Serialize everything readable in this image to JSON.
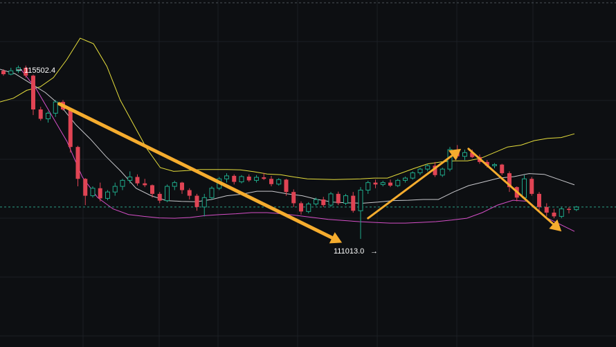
{
  "chart_data": {
    "type": "candlestick",
    "annotations": {
      "high_label": "115502.4",
      "low_label": "111013.0",
      "low_arrow_glyph": "→"
    },
    "colors": {
      "background": "#0d0f12",
      "up": "#1fa98a",
      "down": "#e04454",
      "upper_band": "#e6de3c",
      "middle_band": "#c8c8cc",
      "lower_band": "#d64fc8",
      "trend_arrow": "#f5ac2e",
      "current_price_line": "#33c3a5",
      "grid": "#1c1f24"
    },
    "candles": [
      [
        115480,
        115520,
        115350,
        115390
      ],
      [
        115390,
        115560,
        115360,
        115480
      ],
      [
        115480,
        115620,
        115420,
        115560
      ],
      [
        115560,
        115620,
        115300,
        115350
      ],
      [
        115350,
        115380,
        114300,
        114450
      ],
      [
        114450,
        114520,
        114150,
        114200
      ],
      [
        114200,
        114400,
        114100,
        114350
      ],
      [
        114350,
        114700,
        114250,
        114650
      ],
      [
        114650,
        114700,
        114420,
        114450
      ],
      [
        114450,
        114500,
        113300,
        113450
      ],
      [
        113450,
        113480,
        112400,
        112600
      ],
      [
        112600,
        112620,
        111900,
        112150
      ],
      [
        112150,
        112400,
        112100,
        112350
      ],
      [
        112350,
        112500,
        112000,
        112080
      ],
      [
        112080,
        112300,
        112030,
        112250
      ],
      [
        112250,
        112500,
        112150,
        112400
      ],
      [
        112400,
        112600,
        112300,
        112560
      ],
      [
        112560,
        112800,
        112480,
        112650
      ],
      [
        112650,
        112720,
        112420,
        112480
      ],
      [
        112480,
        112600,
        112380,
        112430
      ],
      [
        112430,
        112450,
        112100,
        112200
      ],
      [
        112200,
        112250,
        111950,
        112020
      ],
      [
        112020,
        112450,
        111980,
        112400
      ],
      [
        112400,
        112550,
        112300,
        112500
      ],
      [
        112500,
        112520,
        112200,
        112300
      ],
      [
        112300,
        112350,
        112050,
        112150
      ],
      [
        112150,
        112200,
        111750,
        111850
      ],
      [
        111850,
        112200,
        111600,
        112100
      ],
      [
        112100,
        112400,
        112050,
        112350
      ],
      [
        112350,
        112650,
        112300,
        112600
      ],
      [
        112600,
        112750,
        112500,
        112680
      ],
      [
        112680,
        112720,
        112450,
        112520
      ],
      [
        112520,
        112700,
        112480,
        112660
      ],
      [
        112660,
        112720,
        112520,
        112560
      ],
      [
        112560,
        112700,
        112500,
        112640
      ],
      [
        112640,
        112760,
        112570,
        112600
      ],
      [
        112600,
        112680,
        112400,
        112460
      ],
      [
        112460,
        112620,
        112420,
        112580
      ],
      [
        112580,
        112600,
        112150,
        112250
      ],
      [
        112250,
        112320,
        111850,
        111950
      ],
      [
        111950,
        112000,
        111650,
        111730
      ],
      [
        111730,
        111980,
        111680,
        111930
      ],
      [
        111930,
        112100,
        111880,
        112050
      ],
      [
        112050,
        112120,
        111850,
        111900
      ],
      [
        111900,
        112250,
        111850,
        112200
      ],
      [
        112200,
        112260,
        111900,
        111950
      ],
      [
        111950,
        112200,
        111900,
        112150
      ],
      [
        112150,
        112250,
        111700,
        111750
      ],
      [
        111750,
        112380,
        111000,
        112300
      ],
      [
        112300,
        112550,
        112200,
        112500
      ],
      [
        112500,
        112580,
        112350,
        112450
      ],
      [
        112450,
        112550,
        112400,
        112500
      ],
      [
        112500,
        112580,
        112380,
        112420
      ],
      [
        112420,
        112600,
        112380,
        112560
      ],
      [
        112560,
        112660,
        112500,
        112620
      ],
      [
        112620,
        112800,
        112580,
        112760
      ],
      [
        112760,
        112900,
        112700,
        112860
      ],
      [
        112860,
        113000,
        112800,
        112950
      ],
      [
        112950,
        113050,
        112650,
        112700
      ],
      [
        112700,
        112900,
        112650,
        112860
      ],
      [
        112860,
        113450,
        112800,
        113380
      ],
      [
        113380,
        113500,
        113150,
        113200
      ],
      [
        113200,
        113380,
        113100,
        113300
      ],
      [
        113300,
        113380,
        113150,
        113180
      ],
      [
        113180,
        113250,
        113000,
        113050
      ],
      [
        113050,
        113100,
        112900,
        112950
      ],
      [
        112950,
        113020,
        112880,
        112980
      ],
      [
        112980,
        113000,
        112700,
        112750
      ],
      [
        112750,
        112800,
        112250,
        112380
      ],
      [
        112380,
        112400,
        112000,
        112100
      ],
      [
        112100,
        112700,
        112050,
        112600
      ],
      [
        112600,
        112650,
        112150,
        112200
      ],
      [
        112200,
        112250,
        111700,
        111850
      ],
      [
        111850,
        111950,
        111600,
        111700
      ],
      [
        111700,
        111800,
        111550,
        111600
      ],
      [
        111600,
        111840,
        111550,
        111800
      ],
      [
        111800,
        111850,
        111680,
        111780
      ],
      [
        111780,
        111880,
        111740,
        111850
      ]
    ],
    "upper_band": [
      114650,
      114750,
      114960,
      115050,
      115300,
      115780,
      116350,
      116200,
      115600,
      114700,
      114050,
      113400,
      112900,
      112800,
      112820,
      112850,
      112850,
      112850,
      112840,
      112790,
      112730,
      112710,
      112650,
      112600,
      112590,
      112580,
      112590,
      112600,
      112620,
      112620,
      112750,
      112880,
      113000,
      113050,
      113080,
      113080,
      113150,
      113300,
      113450,
      113500,
      113620,
      113680,
      113700,
      113800
    ],
    "middle_band": [
      115520,
      115400,
      115150,
      114900,
      114550,
      114050,
      113650,
      113200,
      112800,
      112350,
      112150,
      112020,
      112000,
      111990,
      112050,
      112150,
      112190,
      112270,
      112270,
      112200,
      112150,
      112050,
      111980,
      111960,
      111950,
      111980,
      112020,
      112030,
      112050,
      112050,
      112250,
      112420,
      112520,
      112620,
      112660,
      112740,
      112720,
      112580,
      112440
    ],
    "lower_band": [
      115520,
      115000,
      114300,
      113600,
      112650,
      112100,
      111800,
      111650,
      111600,
      111560,
      111550,
      111570,
      111620,
      111650,
      111670,
      111700,
      111700,
      111670,
      111620,
      111570,
      111520,
      111490,
      111460,
      111440,
      111420,
      111420,
      111440,
      111460,
      111500,
      111550,
      111700,
      111900,
      112030,
      112000,
      111600,
      111400,
      111200
    ]
  }
}
